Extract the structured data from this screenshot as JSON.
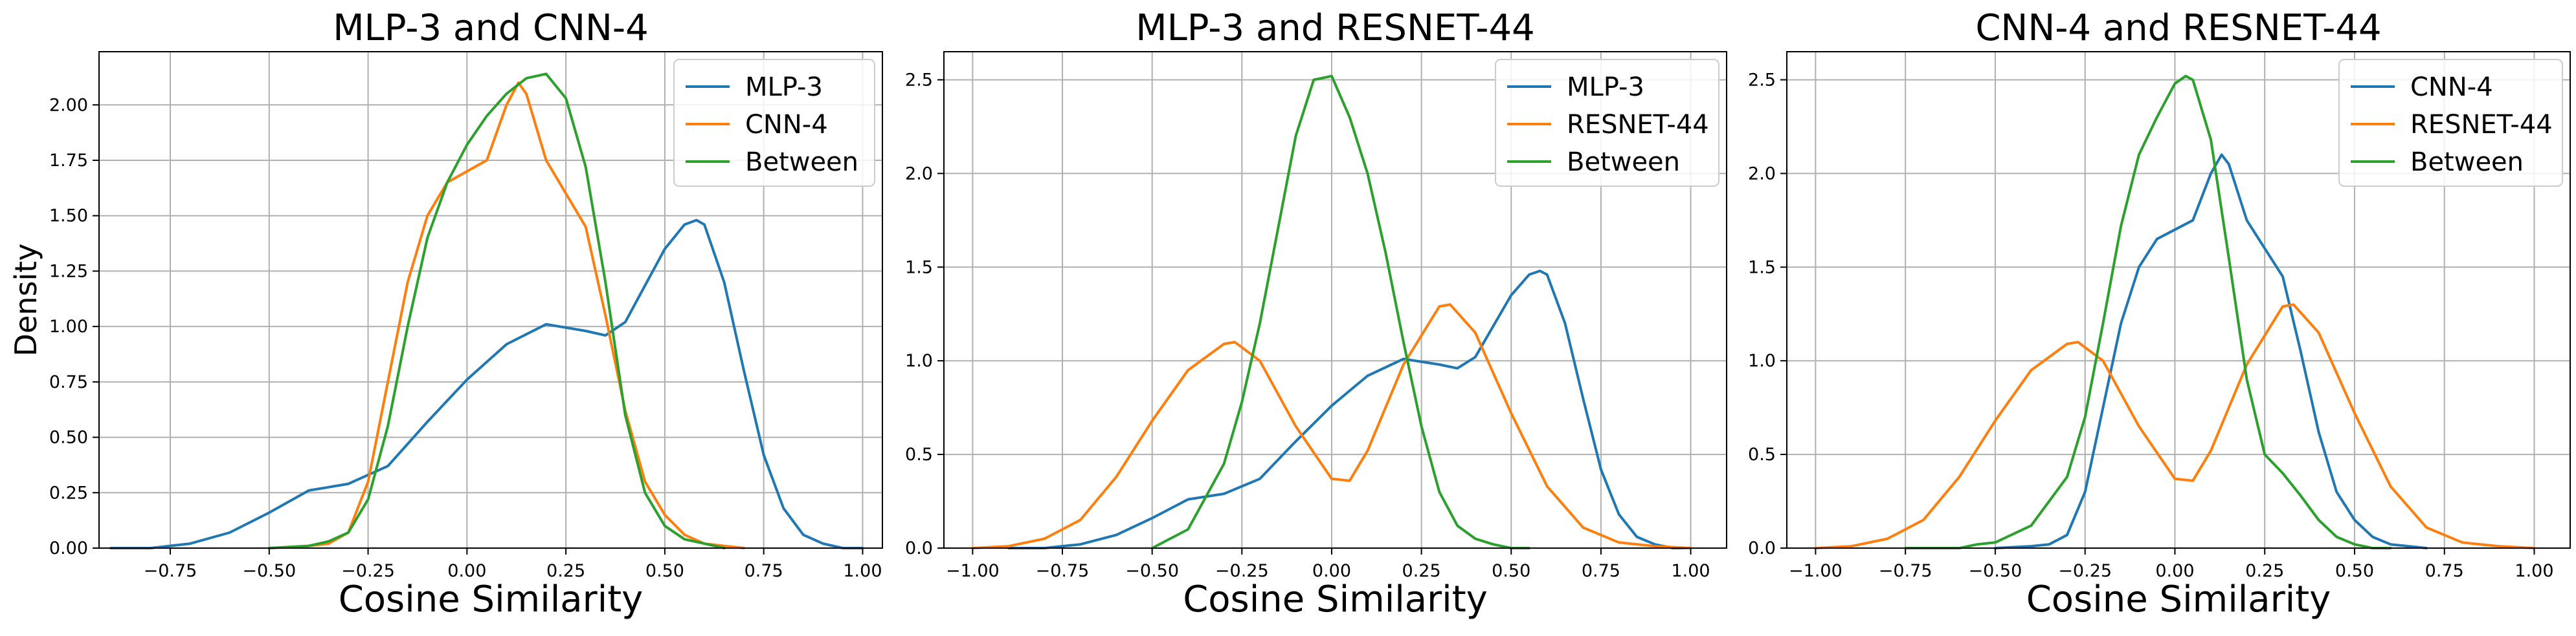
{
  "figure": {
    "ylabel": "Density"
  },
  "chart_data": [
    {
      "type": "line",
      "title": "MLP-3 and CNN-4",
      "xlabel": "Cosine Similarity",
      "ylabel": "Density",
      "xlim": [
        -0.93,
        1.05
      ],
      "ylim": [
        0,
        2.24
      ],
      "xticks": [
        -0.75,
        -0.5,
        -0.25,
        0.0,
        0.25,
        0.5,
        0.75,
        1.0
      ],
      "xtick_labels": [
        "−0.75",
        "−0.50",
        "−0.25",
        "0.00",
        "0.25",
        "0.50",
        "0.75",
        "1.00"
      ],
      "yticks": [
        0.0,
        0.25,
        0.5,
        0.75,
        1.0,
        1.25,
        1.5,
        1.75,
        2.0
      ],
      "ytick_labels": [
        "0.00",
        "0.25",
        "0.50",
        "0.75",
        "1.00",
        "1.25",
        "1.50",
        "1.75",
        "2.00"
      ],
      "grid": true,
      "legend": "top-right",
      "series": [
        {
          "name": "MLP-3",
          "color": "#1f77b4",
          "x": [
            -0.9,
            -0.8,
            -0.7,
            -0.6,
            -0.5,
            -0.4,
            -0.3,
            -0.2,
            -0.1,
            0.0,
            0.1,
            0.2,
            0.3,
            0.35,
            0.4,
            0.5,
            0.55,
            0.58,
            0.6,
            0.65,
            0.7,
            0.75,
            0.8,
            0.85,
            0.9,
            0.95,
            1.0
          ],
          "y": [
            0.0,
            0.0,
            0.02,
            0.07,
            0.16,
            0.26,
            0.29,
            0.37,
            0.57,
            0.76,
            0.92,
            1.01,
            0.98,
            0.96,
            1.02,
            1.35,
            1.46,
            1.48,
            1.46,
            1.2,
            0.8,
            0.42,
            0.18,
            0.06,
            0.02,
            0.0,
            0.0
          ]
        },
        {
          "name": "CNN-4",
          "color": "#ff7f0e",
          "x": [
            -0.5,
            -0.4,
            -0.35,
            -0.3,
            -0.25,
            -0.2,
            -0.15,
            -0.1,
            -0.05,
            0.0,
            0.05,
            0.1,
            0.13,
            0.15,
            0.2,
            0.25,
            0.3,
            0.35,
            0.4,
            0.45,
            0.5,
            0.55,
            0.6,
            0.65,
            0.7
          ],
          "y": [
            0.0,
            0.01,
            0.02,
            0.07,
            0.3,
            0.75,
            1.2,
            1.5,
            1.65,
            1.7,
            1.75,
            2.0,
            2.1,
            2.05,
            1.75,
            1.6,
            1.45,
            1.05,
            0.62,
            0.3,
            0.15,
            0.06,
            0.02,
            0.01,
            0.0
          ]
        },
        {
          "name": "Between",
          "color": "#2ca02c",
          "x": [
            -0.5,
            -0.4,
            -0.35,
            -0.3,
            -0.25,
            -0.2,
            -0.15,
            -0.1,
            -0.05,
            0.0,
            0.05,
            0.1,
            0.15,
            0.2,
            0.25,
            0.3,
            0.35,
            0.4,
            0.45,
            0.5,
            0.55,
            0.6,
            0.65
          ],
          "y": [
            0.0,
            0.01,
            0.03,
            0.07,
            0.22,
            0.55,
            1.0,
            1.4,
            1.65,
            1.82,
            1.95,
            2.05,
            2.12,
            2.14,
            2.03,
            1.72,
            1.2,
            0.6,
            0.25,
            0.1,
            0.04,
            0.02,
            0.0
          ]
        }
      ]
    },
    {
      "type": "line",
      "title": "MLP-3 and RESNET-44",
      "xlabel": "Cosine Similarity",
      "ylim": [
        0,
        2.65
      ],
      "xlim": [
        -1.08,
        1.1
      ],
      "xticks": [
        -1.0,
        -0.75,
        -0.5,
        -0.25,
        0.0,
        0.25,
        0.5,
        0.75,
        1.0
      ],
      "xtick_labels": [
        "−1.00",
        "−0.75",
        "−0.50",
        "−0.25",
        "0.00",
        "0.25",
        "0.50",
        "0.75",
        "1.00"
      ],
      "yticks": [
        0.0,
        0.5,
        1.0,
        1.5,
        2.0,
        2.5
      ],
      "ytick_labels": [
        "0.0",
        "0.5",
        "1.0",
        "1.5",
        "2.0",
        "2.5"
      ],
      "grid": true,
      "legend": "top-right",
      "series": [
        {
          "name": "MLP-3",
          "color": "#1f77b4",
          "x": [
            -0.9,
            -0.8,
            -0.7,
            -0.6,
            -0.5,
            -0.4,
            -0.3,
            -0.2,
            -0.1,
            0.0,
            0.1,
            0.2,
            0.3,
            0.35,
            0.4,
            0.5,
            0.55,
            0.58,
            0.6,
            0.65,
            0.7,
            0.75,
            0.8,
            0.85,
            0.9,
            0.95,
            1.0
          ],
          "y": [
            0.0,
            0.0,
            0.02,
            0.07,
            0.16,
            0.26,
            0.29,
            0.37,
            0.57,
            0.76,
            0.92,
            1.01,
            0.98,
            0.96,
            1.02,
            1.35,
            1.46,
            1.48,
            1.46,
            1.2,
            0.8,
            0.42,
            0.18,
            0.06,
            0.02,
            0.0,
            0.0
          ]
        },
        {
          "name": "RESNET-44",
          "color": "#ff7f0e",
          "x": [
            -1.0,
            -0.9,
            -0.8,
            -0.7,
            -0.6,
            -0.5,
            -0.4,
            -0.3,
            -0.27,
            -0.2,
            -0.1,
            0.0,
            0.05,
            0.1,
            0.2,
            0.3,
            0.33,
            0.4,
            0.5,
            0.6,
            0.7,
            0.8,
            0.9,
            1.0
          ],
          "y": [
            0.0,
            0.01,
            0.05,
            0.15,
            0.38,
            0.68,
            0.95,
            1.09,
            1.1,
            1.0,
            0.65,
            0.37,
            0.36,
            0.52,
            0.98,
            1.29,
            1.3,
            1.15,
            0.72,
            0.33,
            0.11,
            0.03,
            0.01,
            0.0
          ]
        },
        {
          "name": "Between",
          "color": "#2ca02c",
          "x": [
            -0.5,
            -0.4,
            -0.3,
            -0.25,
            -0.2,
            -0.15,
            -0.1,
            -0.05,
            0.0,
            0.05,
            0.1,
            0.15,
            0.2,
            0.25,
            0.3,
            0.35,
            0.4,
            0.45,
            0.5,
            0.55
          ],
          "y": [
            0.0,
            0.1,
            0.45,
            0.78,
            1.2,
            1.7,
            2.2,
            2.5,
            2.52,
            2.3,
            2.0,
            1.58,
            1.1,
            0.65,
            0.3,
            0.12,
            0.05,
            0.02,
            0.0,
            0.0
          ]
        }
      ]
    },
    {
      "type": "line",
      "title": "CNN-4 and RESNET-44",
      "xlabel": "Cosine Similarity",
      "ylim": [
        0,
        2.65
      ],
      "xlim": [
        -1.08,
        1.1
      ],
      "xticks": [
        -1.0,
        -0.75,
        -0.5,
        -0.25,
        0.0,
        0.25,
        0.5,
        0.75,
        1.0
      ],
      "xtick_labels": [
        "−1.00",
        "−0.75",
        "−0.50",
        "−0.25",
        "0.00",
        "0.25",
        "0.50",
        "0.75",
        "1.00"
      ],
      "yticks": [
        0.0,
        0.5,
        1.0,
        1.5,
        2.0,
        2.5
      ],
      "ytick_labels": [
        "0.0",
        "0.5",
        "1.0",
        "1.5",
        "2.0",
        "2.5"
      ],
      "grid": true,
      "legend": "top-right",
      "series": [
        {
          "name": "CNN-4",
          "color": "#1f77b4",
          "x": [
            -0.5,
            -0.4,
            -0.35,
            -0.3,
            -0.25,
            -0.2,
            -0.15,
            -0.1,
            -0.05,
            0.0,
            0.05,
            0.1,
            0.13,
            0.15,
            0.2,
            0.25,
            0.3,
            0.35,
            0.4,
            0.45,
            0.5,
            0.55,
            0.6,
            0.65,
            0.7
          ],
          "y": [
            0.0,
            0.01,
            0.02,
            0.07,
            0.3,
            0.75,
            1.2,
            1.5,
            1.65,
            1.7,
            1.75,
            2.0,
            2.1,
            2.05,
            1.75,
            1.6,
            1.45,
            1.05,
            0.62,
            0.3,
            0.15,
            0.06,
            0.02,
            0.01,
            0.0
          ]
        },
        {
          "name": "RESNET-44",
          "color": "#ff7f0e",
          "x": [
            -1.0,
            -0.9,
            -0.8,
            -0.7,
            -0.6,
            -0.5,
            -0.4,
            -0.3,
            -0.27,
            -0.2,
            -0.1,
            0.0,
            0.05,
            0.1,
            0.2,
            0.3,
            0.33,
            0.4,
            0.5,
            0.6,
            0.7,
            0.8,
            0.9,
            1.0
          ],
          "y": [
            0.0,
            0.01,
            0.05,
            0.15,
            0.38,
            0.68,
            0.95,
            1.09,
            1.1,
            1.0,
            0.65,
            0.37,
            0.36,
            0.52,
            0.98,
            1.29,
            1.3,
            1.15,
            0.72,
            0.33,
            0.11,
            0.03,
            0.01,
            0.0
          ]
        },
        {
          "name": "Between",
          "color": "#2ca02c",
          "x": [
            -0.75,
            -0.6,
            -0.55,
            -0.5,
            -0.4,
            -0.3,
            -0.25,
            -0.2,
            -0.15,
            -0.1,
            -0.05,
            0.0,
            0.03,
            0.05,
            0.1,
            0.15,
            0.2,
            0.25,
            0.3,
            0.35,
            0.4,
            0.45,
            0.5,
            0.55,
            0.6
          ],
          "y": [
            0.0,
            0.0,
            0.02,
            0.03,
            0.12,
            0.38,
            0.7,
            1.2,
            1.72,
            2.1,
            2.3,
            2.48,
            2.52,
            2.5,
            2.18,
            1.55,
            0.9,
            0.5,
            0.4,
            0.28,
            0.15,
            0.06,
            0.02,
            0.0,
            0.0
          ]
        }
      ]
    }
  ]
}
